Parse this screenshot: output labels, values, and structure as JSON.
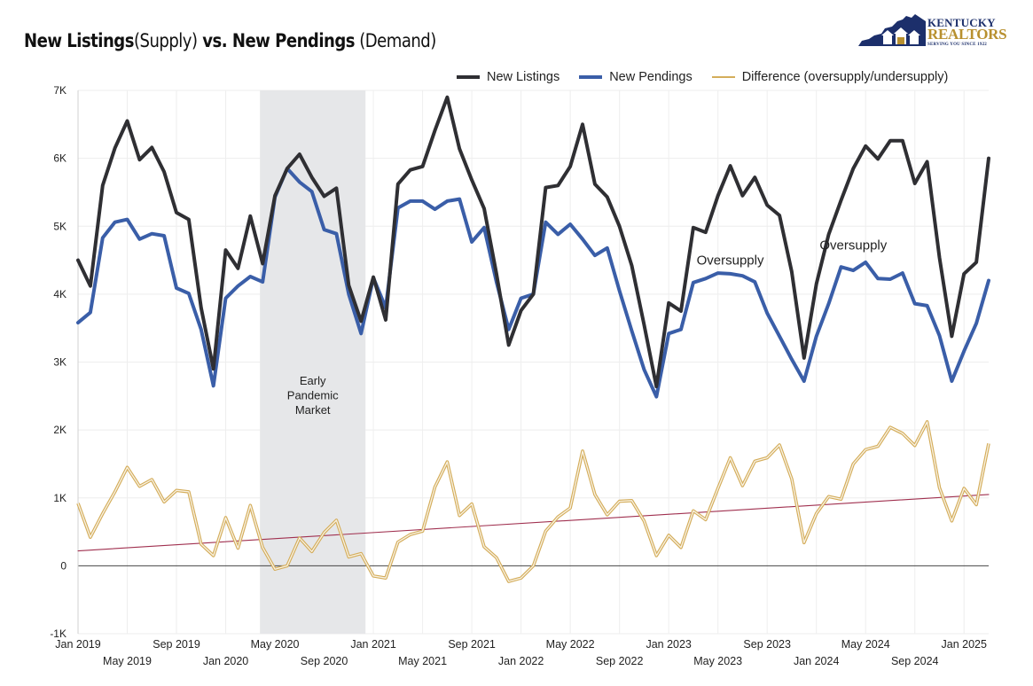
{
  "title": {
    "bold_a": "New Listings",
    "light_a": "(Supply)",
    "bold_b": " vs. New Pendings",
    "light_b": " (Demand)"
  },
  "logo": {
    "line1": "KENTUCKY",
    "line2": "REALTORS",
    "tagline": "SERVING YOU SINCE 1922"
  },
  "colors": {
    "listings": "#2f2f33",
    "pendings": "#3a5ea8",
    "difference": "#d4ad5a",
    "trend": "#a0304f",
    "shade": "#e6e7e9",
    "grid": "#eeeeee"
  },
  "chart_data": {
    "type": "line",
    "ylim": [
      -1000,
      7000
    ],
    "y_ticks": [
      -1000,
      0,
      1000,
      2000,
      3000,
      4000,
      5000,
      6000,
      7000
    ],
    "y_tick_labels": [
      "-1K",
      "0",
      "1K",
      "2K",
      "3K",
      "4K",
      "5K",
      "6K",
      "7K"
    ],
    "x_start": "Jan 2019",
    "x_end": "Mar 2025",
    "x_tick_labels_row1": [
      "Jan 2019",
      "Sep 2019",
      "May 2020",
      "Jan 2021",
      "Sep 2021",
      "May 2022",
      "Jan 2023",
      "Sep 2023",
      "May 2024",
      "Jan 2025"
    ],
    "x_tick_labels_row2": [
      "May 2019",
      "Jan 2020",
      "Sep 2020",
      "May 2021",
      "Jan 2022",
      "Sep 2022",
      "May 2023",
      "Jan 2024",
      "Sep 2024"
    ],
    "series": [
      {
        "name": "New Listings",
        "values": [
          4500,
          4120,
          5600,
          6150,
          6550,
          5980,
          6160,
          5800,
          5200,
          5100,
          3800,
          2900,
          4650,
          4380,
          5150,
          4450,
          5450,
          5850,
          6060,
          5720,
          5440,
          5560,
          4130,
          3600,
          4250,
          3620,
          5620,
          5830,
          5880,
          6410,
          6900,
          6140,
          5680,
          5260,
          4300,
          3250,
          3760,
          4000,
          5570,
          5600,
          5880,
          6500,
          5620,
          5430,
          5000,
          4420,
          3550,
          2640,
          3870,
          3750,
          4980,
          4910,
          5450,
          5890,
          5450,
          5720,
          5310,
          5160,
          4330,
          3060,
          4150,
          4880,
          5380,
          5850,
          6180,
          5990,
          6260,
          6260,
          5630,
          5950,
          4540,
          3380,
          4300,
          4470,
          6000
        ]
      },
      {
        "name": "New Pendings",
        "values": [
          3580,
          3730,
          4830,
          5060,
          5100,
          4810,
          4890,
          4860,
          4090,
          4010,
          3480,
          2650,
          3940,
          4120,
          4260,
          4180,
          5430,
          5850,
          5650,
          5510,
          4950,
          4890,
          4000,
          3420,
          4240,
          3800,
          5270,
          5370,
          5370,
          5250,
          5370,
          5400,
          4770,
          4980,
          4180,
          3480,
          3940,
          4000,
          5060,
          4880,
          5030,
          4810,
          4570,
          4680,
          4050,
          3460,
          2890,
          2490,
          3420,
          3480,
          4170,
          4230,
          4310,
          4300,
          4270,
          4180,
          3720,
          3380,
          3040,
          2720,
          3380,
          3860,
          4400,
          4350,
          4470,
          4230,
          4220,
          4310,
          3860,
          3830,
          3390,
          2720,
          3160,
          3570,
          4200
        ]
      },
      {
        "name": "Difference (oversupply/undersupply)",
        "values": [
          920,
          420,
          770,
          1090,
          1450,
          1170,
          1270,
          940,
          1110,
          1090,
          320,
          150,
          710,
          260,
          890,
          270,
          -50,
          0,
          410,
          210,
          490,
          670,
          130,
          180,
          -150,
          -180,
          350,
          460,
          510,
          1160,
          1530,
          740,
          910,
          280,
          120,
          -230,
          -180,
          0,
          510,
          720,
          850,
          1690,
          1050,
          750,
          950,
          960,
          660,
          150,
          450,
          270,
          810,
          680,
          1140,
          1590,
          1180,
          1540,
          1590,
          1780,
          1280,
          340,
          770,
          1020,
          980,
          1500,
          1710,
          1760,
          2040,
          1950,
          1770,
          2120,
          1150,
          660,
          1140,
          900,
          1800
        ]
      },
      {
        "name": "trend",
        "values": [
          220,
          1050
        ]
      }
    ],
    "shaded_region": {
      "from": "Apr 2020",
      "to": "Dec 2020",
      "label_lines": [
        "Early",
        "Pandemic",
        "Market"
      ]
    },
    "annotations": [
      {
        "text": "Oversupply",
        "x": "Jun 2023",
        "y": 4500
      },
      {
        "text": "Oversupply",
        "x": "Apr 2024",
        "y": 4720
      }
    ],
    "legend": {
      "placement": "top-right",
      "items": [
        "New Listings",
        "New Pendings",
        "Difference (oversupply/undersupply)"
      ]
    }
  }
}
